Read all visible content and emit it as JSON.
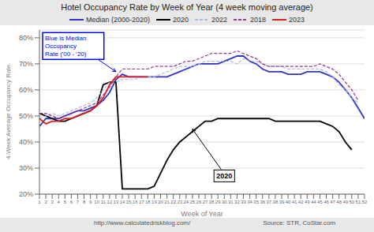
{
  "chart_data": {
    "type": "line",
    "title": "Hotel Occupancy Rate by  Week of Year (4 week moving average)",
    "xlabel": "Week of Year",
    "ylabel": "4-Week Average Occupancy Rate",
    "footnotes": [
      "http://www.calculatedriskblog.com/",
      "Source: STR, CoStar.com"
    ],
    "annotations": [
      {
        "text": "Blue is Median\nOccupancy\nRate ('00 - '20)",
        "color": "blue"
      },
      {
        "text": "2020",
        "color": "#000000"
      }
    ],
    "x": [
      1,
      2,
      3,
      4,
      5,
      6,
      7,
      8,
      9,
      10,
      11,
      12,
      13,
      14,
      15,
      16,
      17,
      18,
      19,
      20,
      21,
      22,
      23,
      24,
      25,
      26,
      27,
      28,
      29,
      30,
      31,
      32,
      33,
      34,
      35,
      36,
      37,
      38,
      39,
      40,
      41,
      42,
      43,
      44,
      45,
      46,
      47,
      48,
      49,
      50,
      51,
      52
    ],
    "series": [
      {
        "name": "Median (2000-2020)",
        "color": "#3333cc",
        "line_style": "solid",
        "values": [
          46,
          49,
          49,
          49,
          50,
          51,
          52,
          52,
          53,
          54,
          56,
          59,
          64,
          66,
          65,
          65,
          65,
          65,
          65,
          65,
          65,
          66,
          67,
          68,
          69,
          70,
          70,
          70,
          70,
          71,
          72,
          73,
          73,
          71,
          70,
          68,
          67,
          67,
          67,
          66,
          66,
          66,
          67,
          67,
          67,
          66,
          65,
          63,
          60,
          57,
          53,
          49
        ]
      },
      {
        "name": "2020",
        "color": "#000000",
        "line_style": "solid",
        "values": [
          51,
          50,
          49,
          48,
          48,
          49,
          50,
          51,
          52,
          54,
          62,
          63,
          63,
          22,
          22,
          22,
          22,
          22,
          23,
          28,
          33,
          37,
          40,
          42,
          44,
          46,
          48,
          48,
          49,
          49,
          49,
          49,
          49,
          49,
          49,
          49,
          49,
          48,
          48,
          48,
          48,
          48,
          48,
          48,
          48,
          47,
          46,
          44,
          40,
          37,
          null,
          null
        ]
      },
      {
        "name": "2022",
        "color": "#aabbdd",
        "line_style": "dashed",
        "values": [
          49,
          50,
          51,
          50,
          51,
          52,
          53,
          54,
          55,
          57,
          60,
          63,
          63,
          64,
          64,
          64,
          65,
          65,
          65,
          66,
          67,
          68,
          69,
          69,
          69,
          70,
          71,
          71,
          71,
          71,
          71,
          70,
          72,
          71,
          71,
          70,
          69,
          69,
          69,
          68,
          68,
          68,
          68,
          68,
          68,
          67,
          65,
          62,
          60,
          57,
          55,
          null
        ]
      },
      {
        "name": "2018",
        "color": "#993399",
        "line_style": "dashed",
        "values": [
          51,
          51,
          50,
          49,
          50,
          51,
          52,
          53,
          54,
          55,
          58,
          61,
          65,
          68,
          68,
          68,
          68,
          68,
          69,
          69,
          69,
          69,
          70,
          71,
          71,
          72,
          73,
          74,
          74,
          74,
          74,
          75,
          74,
          73,
          72,
          70,
          69,
          69,
          69,
          69,
          69,
          69,
          69,
          69,
          70,
          69,
          68,
          66,
          63,
          60,
          56,
          null
        ]
      },
      {
        "name": "2023",
        "color": "#dd2222",
        "line_style": "solid",
        "values": [
          49,
          47,
          48,
          48,
          49,
          49,
          50,
          51,
          52,
          54,
          57,
          62,
          65,
          65,
          65,
          65,
          65,
          65,
          null,
          null,
          null,
          null,
          null,
          null,
          null,
          null,
          null,
          null,
          null,
          null,
          null,
          null,
          null,
          null,
          null,
          null,
          null,
          null,
          null,
          null,
          null,
          null,
          null,
          null,
          null,
          null,
          null,
          null,
          null,
          null,
          null,
          null
        ]
      }
    ],
    "xlim": [
      1,
      52
    ],
    "xticks": [
      1,
      2,
      3,
      4,
      5,
      6,
      7,
      8,
      9,
      10,
      11,
      12,
      13,
      14,
      15,
      16,
      17,
      18,
      19,
      20,
      21,
      22,
      23,
      24,
      25,
      26,
      27,
      28,
      29,
      30,
      31,
      32,
      33,
      34,
      35,
      36,
      37,
      38,
      39,
      40,
      41,
      42,
      43,
      44,
      45,
      46,
      47,
      48,
      49,
      50,
      51,
      52
    ],
    "ylim": [
      20,
      83
    ],
    "yticks": [
      {
        "value": 20,
        "label": "20%"
      },
      {
        "value": 30,
        "label": "30%"
      },
      {
        "value": 40,
        "label": "40%"
      },
      {
        "value": 50,
        "label": "50%"
      },
      {
        "value": 60,
        "label": "60%"
      },
      {
        "value": 70,
        "label": "70%"
      },
      {
        "value": 80,
        "label": "80%"
      }
    ],
    "grid": "y",
    "legend": "top"
  }
}
